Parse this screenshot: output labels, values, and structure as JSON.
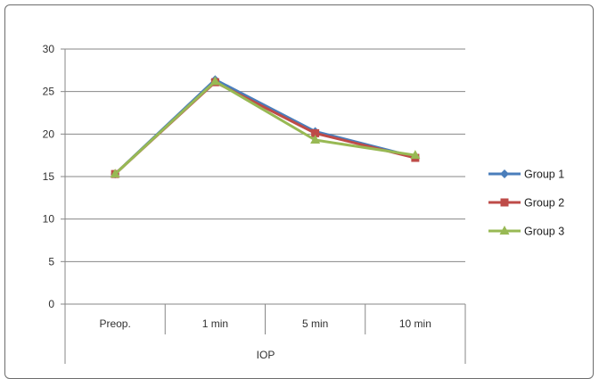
{
  "chart_data": {
    "type": "line",
    "categories": [
      "Preop.",
      "1 min",
      "5 min",
      "10 min"
    ],
    "xlabel": "IOP",
    "ylabel": "",
    "ylim": [
      0,
      30
    ],
    "yticks": [
      0,
      5,
      10,
      15,
      20,
      25,
      30
    ],
    "grid": true,
    "legend_position": "right",
    "series": [
      {
        "name": "Group 1",
        "color": "#4a7ebb",
        "marker": "diamond",
        "values": [
          15.3,
          26.4,
          20.3,
          17.3
        ]
      },
      {
        "name": "Group 2",
        "color": "#be4b48",
        "marker": "square",
        "values": [
          15.3,
          26.1,
          20.1,
          17.2
        ]
      },
      {
        "name": "Group 3",
        "color": "#98b954",
        "marker": "triangle",
        "values": [
          15.3,
          26.2,
          19.3,
          17.5
        ]
      }
    ]
  }
}
